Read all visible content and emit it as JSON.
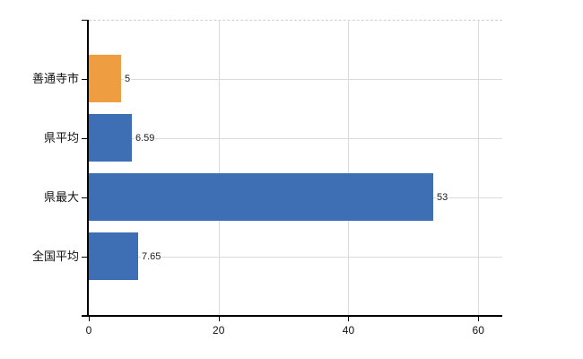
{
  "chart_data": {
    "type": "bar",
    "orientation": "horizontal",
    "title": "",
    "xlabel": "",
    "ylabel": "",
    "categories": [
      "善通寺市",
      "県平均",
      "県最大",
      "全国平均"
    ],
    "values": [
      5,
      6.59,
      53,
      7.65
    ],
    "value_labels": [
      "5",
      "6.59",
      "53",
      "7.65"
    ],
    "bar_colors": [
      "#ee9e40",
      "#3e6fb4",
      "#3e6fb4",
      "#3e6fb4"
    ],
    "highlight_color": "#ee9e40",
    "series_color": "#3e6fb4",
    "x_ticks": [
      0,
      20,
      40,
      60
    ],
    "x_tick_labels": [
      "0",
      "20",
      "40",
      "60"
    ],
    "xlim": [
      0,
      63.7
    ],
    "grid": true,
    "gridline_color": "#d8dbda",
    "axis_color": "#000000",
    "background_color": "#ffffff",
    "legend": null
  }
}
